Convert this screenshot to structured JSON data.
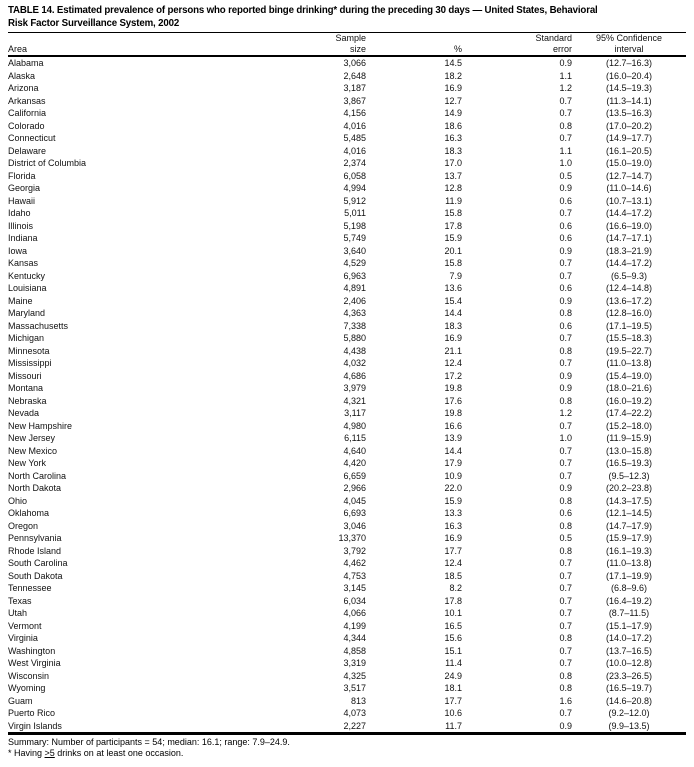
{
  "header": {
    "title_line1": "TABLE 14. Estimated prevalence of persons who reported binge drinking* during the preceding 30 days — United States, Behavioral",
    "title_line2": "Risk Factor Surveillance System, 2002"
  },
  "table": {
    "columns": {
      "area": "Area",
      "sample_line1": "Sample",
      "sample_line2": "size",
      "percent": "%",
      "se_line1": "Standard",
      "se_line2": "error",
      "ci_line1": "95% Confidence",
      "ci_line2": "interval"
    },
    "rows": [
      {
        "area": "Alabama",
        "sample_size": "3,066",
        "percent": "14.5",
        "se": "0.9",
        "ci": "(12.7–16.3)"
      },
      {
        "area": "Alaska",
        "sample_size": "2,648",
        "percent": "18.2",
        "se": "1.1",
        "ci": "(16.0–20.4)"
      },
      {
        "area": "Arizona",
        "sample_size": "3,187",
        "percent": "16.9",
        "se": "1.2",
        "ci": "(14.5–19.3)"
      },
      {
        "area": "Arkansas",
        "sample_size": "3,867",
        "percent": "12.7",
        "se": "0.7",
        "ci": "(11.3–14.1)"
      },
      {
        "area": "California",
        "sample_size": "4,156",
        "percent": "14.9",
        "se": "0.7",
        "ci": "(13.5–16.3)"
      },
      {
        "area": "Colorado",
        "sample_size": "4,016",
        "percent": "18.6",
        "se": "0.8",
        "ci": "(17.0–20.2)"
      },
      {
        "area": "Connecticut",
        "sample_size": "5,485",
        "percent": "16.3",
        "se": "0.7",
        "ci": "(14.9–17.7)"
      },
      {
        "area": "Delaware",
        "sample_size": "4,016",
        "percent": "18.3",
        "se": "1.1",
        "ci": "(16.1–20.5)"
      },
      {
        "area": "District of Columbia",
        "sample_size": "2,374",
        "percent": "17.0",
        "se": "1.0",
        "ci": "(15.0–19.0)"
      },
      {
        "area": "Florida",
        "sample_size": "6,058",
        "percent": "13.7",
        "se": "0.5",
        "ci": "(12.7–14.7)"
      },
      {
        "area": "Georgia",
        "sample_size": "4,994",
        "percent": "12.8",
        "se": "0.9",
        "ci": "(11.0–14.6)"
      },
      {
        "area": "Hawaii",
        "sample_size": "5,912",
        "percent": "11.9",
        "se": "0.6",
        "ci": "(10.7–13.1)"
      },
      {
        "area": "Idaho",
        "sample_size": "5,011",
        "percent": "15.8",
        "se": "0.7",
        "ci": "(14.4–17.2)"
      },
      {
        "area": "Illinois",
        "sample_size": "5,198",
        "percent": "17.8",
        "se": "0.6",
        "ci": "(16.6–19.0)"
      },
      {
        "area": "Indiana",
        "sample_size": "5,749",
        "percent": "15.9",
        "se": "0.6",
        "ci": "(14.7–17.1)"
      },
      {
        "area": "Iowa",
        "sample_size": "3,640",
        "percent": "20.1",
        "se": "0.9",
        "ci": "(18.3–21.9)"
      },
      {
        "area": "Kansas",
        "sample_size": "4,529",
        "percent": "15.8",
        "se": "0.7",
        "ci": "(14.4–17.2)"
      },
      {
        "area": "Kentucky",
        "sample_size": "6,963",
        "percent": "7.9",
        "se": "0.7",
        "ci": "(6.5–9.3)"
      },
      {
        "area": "Louisiana",
        "sample_size": "4,891",
        "percent": "13.6",
        "se": "0.6",
        "ci": "(12.4–14.8)"
      },
      {
        "area": "Maine",
        "sample_size": "2,406",
        "percent": "15.4",
        "se": "0.9",
        "ci": "(13.6–17.2)"
      },
      {
        "area": "Maryland",
        "sample_size": "4,363",
        "percent": "14.4",
        "se": "0.8",
        "ci": "(12.8–16.0)"
      },
      {
        "area": "Massachusetts",
        "sample_size": "7,338",
        "percent": "18.3",
        "se": "0.6",
        "ci": "(17.1–19.5)"
      },
      {
        "area": "Michigan",
        "sample_size": "5,880",
        "percent": "16.9",
        "se": "0.7",
        "ci": "(15.5–18.3)"
      },
      {
        "area": "Minnesota",
        "sample_size": "4,438",
        "percent": "21.1",
        "se": "0.8",
        "ci": "(19.5–22.7)"
      },
      {
        "area": "Mississippi",
        "sample_size": "4,032",
        "percent": "12.4",
        "se": "0.7",
        "ci": "(11.0–13.8)"
      },
      {
        "area": "Missouri",
        "sample_size": "4,686",
        "percent": "17.2",
        "se": "0.9",
        "ci": "(15.4–19.0)"
      },
      {
        "area": "Montana",
        "sample_size": "3,979",
        "percent": "19.8",
        "se": "0.9",
        "ci": "(18.0–21.6)"
      },
      {
        "area": "Nebraska",
        "sample_size": "4,321",
        "percent": "17.6",
        "se": "0.8",
        "ci": "(16.0–19.2)"
      },
      {
        "area": "Nevada",
        "sample_size": "3,117",
        "percent": "19.8",
        "se": "1.2",
        "ci": "(17.4–22.2)"
      },
      {
        "area": "New Hampshire",
        "sample_size": "4,980",
        "percent": "16.6",
        "se": "0.7",
        "ci": "(15.2–18.0)"
      },
      {
        "area": "New Jersey",
        "sample_size": "6,115",
        "percent": "13.9",
        "se": "1.0",
        "ci": "(11.9–15.9)"
      },
      {
        "area": "New Mexico",
        "sample_size": "4,640",
        "percent": "14.4",
        "se": "0.7",
        "ci": "(13.0–15.8)"
      },
      {
        "area": "New York",
        "sample_size": "4,420",
        "percent": "17.9",
        "se": "0.7",
        "ci": "(16.5–19.3)"
      },
      {
        "area": "North Carolina",
        "sample_size": "6,659",
        "percent": "10.9",
        "se": "0.7",
        "ci": "(9.5–12.3)"
      },
      {
        "area": "North Dakota",
        "sample_size": "2,966",
        "percent": "22.0",
        "se": "0.9",
        "ci": "(20.2–23.8)"
      },
      {
        "area": "Ohio",
        "sample_size": "4,045",
        "percent": "15.9",
        "se": "0.8",
        "ci": "(14.3–17.5)"
      },
      {
        "area": "Oklahoma",
        "sample_size": "6,693",
        "percent": "13.3",
        "se": "0.6",
        "ci": "(12.1–14.5)"
      },
      {
        "area": "Oregon",
        "sample_size": "3,046",
        "percent": "16.3",
        "se": "0.8",
        "ci": "(14.7–17.9)"
      },
      {
        "area": "Pennsylvania",
        "sample_size": "13,370",
        "percent": "16.9",
        "se": "0.5",
        "ci": "(15.9–17.9)"
      },
      {
        "area": "Rhode Island",
        "sample_size": "3,792",
        "percent": "17.7",
        "se": "0.8",
        "ci": "(16.1–19.3)"
      },
      {
        "area": "South Carolina",
        "sample_size": "4,462",
        "percent": "12.4",
        "se": "0.7",
        "ci": "(11.0–13.8)"
      },
      {
        "area": "South Dakota",
        "sample_size": "4,753",
        "percent": "18.5",
        "se": "0.7",
        "ci": "(17.1–19.9)"
      },
      {
        "area": "Tennessee",
        "sample_size": "3,145",
        "percent": "8.2",
        "se": "0.7",
        "ci": "(6.8–9.6)"
      },
      {
        "area": "Texas",
        "sample_size": "6,034",
        "percent": "17.8",
        "se": "0.7",
        "ci": "(16.4–19.2)"
      },
      {
        "area": "Utah",
        "sample_size": "4,066",
        "percent": "10.1",
        "se": "0.7",
        "ci": "(8.7–11.5)"
      },
      {
        "area": "Vermont",
        "sample_size": "4,199",
        "percent": "16.5",
        "se": "0.7",
        "ci": "(15.1–17.9)"
      },
      {
        "area": "Virginia",
        "sample_size": "4,344",
        "percent": "15.6",
        "se": "0.8",
        "ci": "(14.0–17.2)"
      },
      {
        "area": "Washington",
        "sample_size": "4,858",
        "percent": "15.1",
        "se": "0.7",
        "ci": "(13.7–16.5)"
      },
      {
        "area": "West Virginia",
        "sample_size": "3,319",
        "percent": "11.4",
        "se": "0.7",
        "ci": "(10.0–12.8)"
      },
      {
        "area": "Wisconsin",
        "sample_size": "4,325",
        "percent": "24.9",
        "se": "0.8",
        "ci": "(23.3–26.5)"
      },
      {
        "area": "Wyoming",
        "sample_size": "3,517",
        "percent": "18.1",
        "se": "0.8",
        "ci": "(16.5–19.7)"
      },
      {
        "area": "Guam",
        "sample_size": "813",
        "percent": "17.7",
        "se": "1.6",
        "ci": "(14.6–20.8)"
      },
      {
        "area": "Puerto Rico",
        "sample_size": "4,073",
        "percent": "10.6",
        "se": "0.7",
        "ci": "(9.2–12.0)"
      },
      {
        "area": "Virgin Islands",
        "sample_size": "2,227",
        "percent": "11.7",
        "se": "0.9",
        "ci": "(9.9–13.5)"
      }
    ]
  },
  "summary": "Summary: Number of participants = 54; median: 16.1; range: 7.9–24.9.",
  "footnote": {
    "prefix": "* Having ",
    "underlined": ">5",
    "suffix": " drinks on at least one occasion."
  }
}
